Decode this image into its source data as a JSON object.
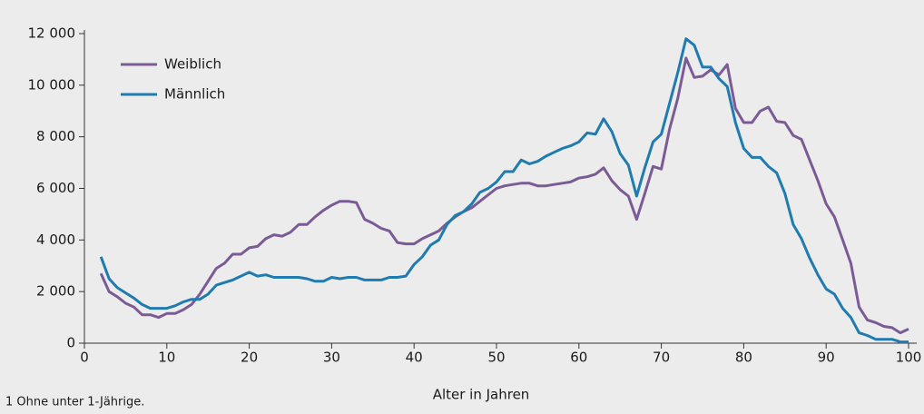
{
  "chart_data": {
    "type": "line",
    "xlabel": "Alter in Jahren",
    "footnote": "1 Ohne unter 1-Jährige.",
    "x": [
      2,
      3,
      4,
      5,
      6,
      7,
      8,
      9,
      10,
      11,
      12,
      13,
      14,
      15,
      16,
      17,
      18,
      19,
      20,
      21,
      22,
      23,
      24,
      25,
      26,
      27,
      28,
      29,
      30,
      31,
      32,
      33,
      34,
      35,
      36,
      37,
      38,
      39,
      40,
      41,
      42,
      43,
      44,
      45,
      46,
      47,
      48,
      49,
      50,
      51,
      52,
      53,
      54,
      55,
      56,
      57,
      58,
      59,
      60,
      61,
      62,
      63,
      64,
      65,
      66,
      67,
      68,
      69,
      70,
      71,
      72,
      73,
      74,
      75,
      76,
      77,
      78,
      79,
      80,
      81,
      82,
      83,
      84,
      85,
      86,
      87,
      88,
      89,
      90,
      91,
      92,
      93,
      94,
      95,
      96,
      97,
      98,
      99,
      100
    ],
    "series": [
      {
        "name": "Weiblich",
        "color": "#7b5b95",
        "values": [
          2700,
          2000,
          1800,
          1550,
          1400,
          1100,
          1100,
          1000,
          1150,
          1150,
          1300,
          1500,
          1900,
          2400,
          2900,
          3100,
          3450,
          3450,
          3700,
          3750,
          4050,
          4200,
          4150,
          4300,
          4600,
          4600,
          4900,
          5150,
          5350,
          5500,
          5500,
          5450,
          4800,
          4650,
          4450,
          4350,
          3900,
          3850,
          3850,
          4050,
          4200,
          4350,
          4650,
          4900,
          5100,
          5250,
          5500,
          5750,
          6000,
          6100,
          6150,
          6200,
          6200,
          6100,
          6100,
          6150,
          6200,
          6250,
          6400,
          6450,
          6550,
          6800,
          6300,
          5950,
          5700,
          4800,
          5800,
          6850,
          6750,
          8300,
          9500,
          11050,
          10300,
          10350,
          10600,
          10400,
          10800,
          9100,
          8550,
          8550,
          9000,
          9150,
          8600,
          8550,
          8050,
          7900,
          7100,
          6300,
          5400,
          4900,
          4000,
          3100,
          1400,
          900,
          800,
          650,
          600,
          400,
          550
        ]
      },
      {
        "name": "Männlich",
        "color": "#1f7bb0",
        "values": [
          3350,
          2500,
          2150,
          1950,
          1750,
          1500,
          1350,
          1350,
          1350,
          1450,
          1600,
          1700,
          1700,
          1900,
          2250,
          2350,
          2450,
          2600,
          2750,
          2600,
          2650,
          2550,
          2550,
          2550,
          2550,
          2500,
          2400,
          2400,
          2550,
          2500,
          2550,
          2550,
          2450,
          2450,
          2450,
          2550,
          2550,
          2600,
          3050,
          3350,
          3800,
          4000,
          4600,
          4950,
          5100,
          5400,
          5850,
          6000,
          6250,
          6650,
          6650,
          7100,
          6950,
          7050,
          7250,
          7400,
          7550,
          7650,
          7800,
          8150,
          8100,
          8700,
          8200,
          7350,
          6900,
          5700,
          6800,
          7800,
          8100,
          9300,
          10500,
          11800,
          11550,
          10700,
          10700,
          10250,
          9950,
          8550,
          7550,
          7200,
          7200,
          6850,
          6600,
          5800,
          4600,
          4050,
          3300,
          2650,
          2100,
          1900,
          1350,
          1000,
          400,
          300,
          150,
          150,
          150,
          50,
          50
        ]
      }
    ],
    "xlim": [
      0,
      101
    ],
    "xticks": [
      0,
      10,
      20,
      30,
      40,
      50,
      60,
      70,
      80,
      90,
      100
    ],
    "ylim": [
      0,
      12000
    ],
    "yticks": [
      0,
      {
        "value": 2000,
        "label": "2 000"
      },
      {
        "value": 4000,
        "label": "4 000"
      },
      {
        "value": 6000,
        "label": "6 000"
      },
      {
        "value": 8000,
        "label": "8 000"
      },
      {
        "value": 10000,
        "label": "10 000"
      },
      {
        "value": 12000,
        "label": "12 000"
      }
    ],
    "legend": "upper left"
  }
}
